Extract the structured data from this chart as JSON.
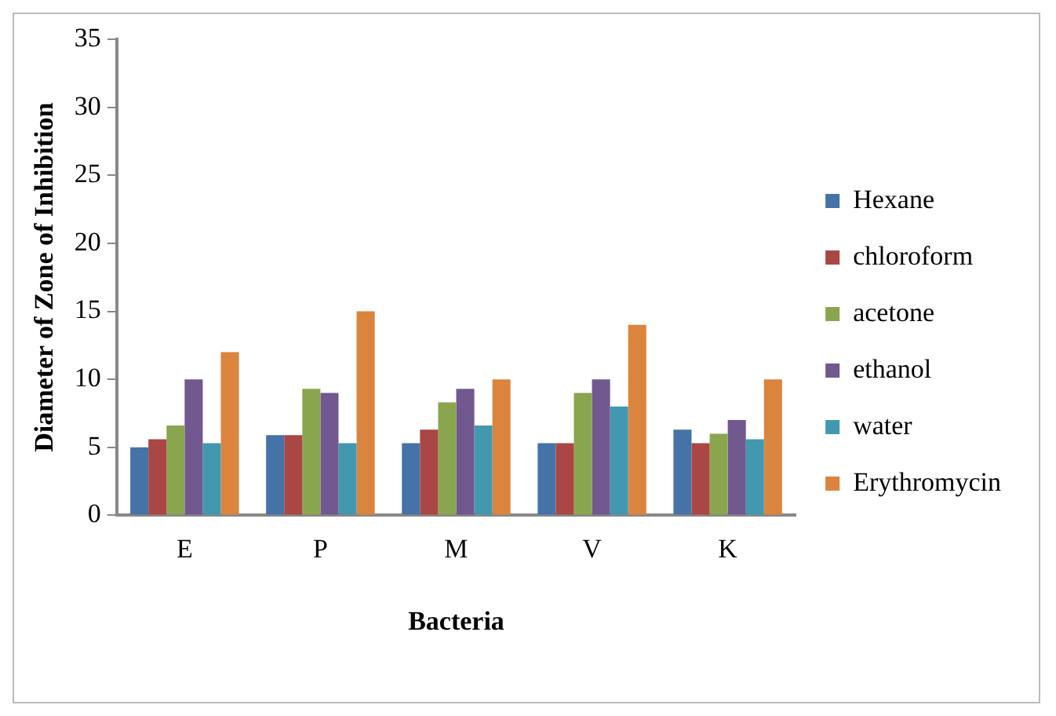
{
  "chart_data": {
    "type": "bar",
    "xlabel": "Bacteria",
    "ylabel": "Diameter of Zone of Inhibition",
    "categories": [
      "E",
      "P",
      "M",
      "V",
      "K"
    ],
    "series": [
      {
        "name": "Hexane",
        "color": "#4572a7",
        "values": [
          5.0,
          5.9,
          5.3,
          5.3,
          6.3
        ]
      },
      {
        "name": "chloroform",
        "color": "#aa4643",
        "values": [
          5.6,
          5.9,
          6.3,
          5.3,
          5.3
        ]
      },
      {
        "name": "acetone",
        "color": "#89a54e",
        "values": [
          6.6,
          9.3,
          8.3,
          9.0,
          6.0
        ]
      },
      {
        "name": "ethanol",
        "color": "#71588f",
        "values": [
          10,
          9.0,
          9.3,
          10,
          7.0
        ]
      },
      {
        "name": "water",
        "color": "#4198af",
        "values": [
          5.3,
          5.3,
          6.6,
          8.0,
          5.6
        ]
      },
      {
        "name": "Erythromycin",
        "color": "#db843d",
        "values": [
          12,
          15,
          10,
          14,
          10
        ]
      }
    ],
    "ylim": [
      0,
      35
    ],
    "yticks": [
      0,
      5,
      10,
      15,
      20,
      25,
      30,
      35
    ],
    "grid": false,
    "legend": "right"
  }
}
